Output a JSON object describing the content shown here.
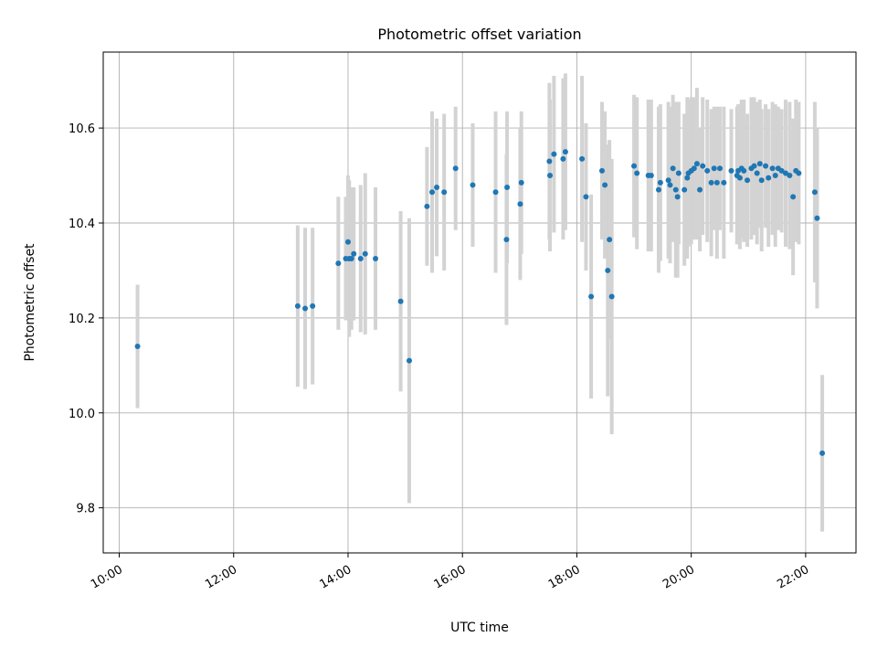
{
  "chart_data": {
    "type": "scatter",
    "title": "Photometric offset variation",
    "xlabel": "UTC time",
    "ylabel": "Photometric offset",
    "x_unit": "hours UTC",
    "xlim": [
      9.72,
      22.88
    ],
    "ylim": [
      9.705,
      10.76
    ],
    "x_ticks": [
      10,
      12,
      14,
      16,
      18,
      20,
      22
    ],
    "x_tick_labels": [
      "10:00",
      "12:00",
      "14:00",
      "16:00",
      "18:00",
      "20:00",
      "22:00"
    ],
    "y_ticks": [
      9.8,
      10.0,
      10.2,
      10.4,
      10.6
    ],
    "y_tick_labels": [
      "9.8",
      "10.0",
      "10.2",
      "10.4",
      "10.6"
    ],
    "grid": true,
    "legend": "none",
    "colors": {
      "marker": "#1f77b4",
      "errorbar": "#d3d3d3",
      "grid": "#b0b0b0"
    },
    "series": [
      {
        "x": [
          10.32,
          13.12,
          13.25,
          13.38,
          13.83,
          13.96,
          14.0,
          14.02,
          14.06,
          14.1,
          14.22,
          14.3,
          14.48,
          14.92,
          15.07,
          15.38,
          15.47,
          15.55,
          15.68,
          15.88,
          16.18,
          16.58,
          16.77,
          16.78,
          17.01,
          17.03,
          17.52,
          17.53,
          17.6,
          17.76,
          17.8,
          18.09,
          18.16,
          18.25,
          18.44,
          18.49,
          18.54,
          18.57,
          18.61,
          19.0,
          19.05,
          19.25,
          19.3,
          19.43,
          19.46,
          19.6,
          19.63,
          19.68,
          19.73,
          19.76,
          19.78,
          19.88,
          19.93,
          19.95,
          20.0,
          20.05,
          20.1,
          20.15,
          20.2,
          20.28,
          20.35,
          20.4,
          20.45,
          20.5,
          20.57,
          20.7,
          20.8,
          20.82,
          20.85,
          20.88,
          20.92,
          20.98,
          21.05,
          21.1,
          21.15,
          21.2,
          21.23,
          21.3,
          21.35,
          21.42,
          21.47,
          21.52,
          21.58,
          21.65,
          21.72,
          21.78,
          21.83,
          21.88,
          22.16,
          22.2,
          22.29
        ],
        "y": [
          10.14,
          10.225,
          10.22,
          10.225,
          10.315,
          10.325,
          10.36,
          10.325,
          10.325,
          10.335,
          10.325,
          10.335,
          10.325,
          10.235,
          10.11,
          10.435,
          10.465,
          10.475,
          10.465,
          10.515,
          10.48,
          10.465,
          10.365,
          10.475,
          10.44,
          10.485,
          10.53,
          10.5,
          10.545,
          10.535,
          10.55,
          10.535,
          10.455,
          10.245,
          10.51,
          10.48,
          10.3,
          10.365,
          10.245,
          10.52,
          10.505,
          10.5,
          10.5,
          10.47,
          10.485,
          10.49,
          10.48,
          10.515,
          10.47,
          10.455,
          10.505,
          10.47,
          10.495,
          10.505,
          10.51,
          10.515,
          10.525,
          10.47,
          10.52,
          10.51,
          10.485,
          10.515,
          10.485,
          10.515,
          10.485,
          10.51,
          10.5,
          10.51,
          10.495,
          10.515,
          10.51,
          10.49,
          10.515,
          10.52,
          10.505,
          10.525,
          10.49,
          10.52,
          10.495,
          10.515,
          10.5,
          10.515,
          10.51,
          10.505,
          10.5,
          10.455,
          10.51,
          10.505,
          10.465,
          10.41,
          9.915
        ],
        "yerr": [
          0.13,
          0.17,
          0.17,
          0.165,
          0.14,
          0.13,
          0.14,
          0.165,
          0.15,
          0.14,
          0.155,
          0.17,
          0.15,
          0.19,
          0.3,
          0.125,
          0.17,
          0.145,
          0.165,
          0.13,
          0.13,
          0.17,
          0.18,
          0.16,
          0.16,
          0.15,
          0.165,
          0.16,
          0.165,
          0.17,
          0.165,
          0.175,
          0.155,
          0.215,
          0.145,
          0.155,
          0.265,
          0.21,
          0.29,
          0.15,
          0.16,
          0.16,
          0.16,
          0.175,
          0.165,
          0.165,
          0.165,
          0.155,
          0.185,
          0.17,
          0.15,
          0.16,
          0.17,
          0.155,
          0.155,
          0.15,
          0.16,
          0.13,
          0.145,
          0.15,
          0.155,
          0.13,
          0.16,
          0.13,
          0.16,
          0.13,
          0.145,
          0.14,
          0.15,
          0.145,
          0.15,
          0.14,
          0.15,
          0.145,
          0.15,
          0.135,
          0.15,
          0.13,
          0.145,
          0.14,
          0.15,
          0.13,
          0.13,
          0.155,
          0.155,
          0.165,
          0.15,
          0.15,
          0.19,
          0.19,
          0.165
        ]
      }
    ]
  }
}
